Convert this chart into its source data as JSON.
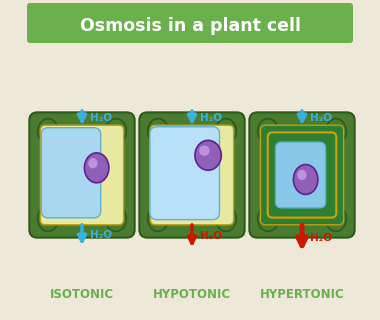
{
  "title": "Osmosis in a plant cell",
  "title_bg": "#6ab04c",
  "title_color": "#ffffff",
  "bg_color": "#ede8d8",
  "labels": [
    "ISOTONIC",
    "HYPOTONIC",
    "HYPERTONIC"
  ],
  "label_color": "#6ab04c",
  "cell_wall_outer": "#4a7c2f",
  "cell_wall_inner_light": "#d8eeaa",
  "cell_wall_stroke": "#2d5a1b",
  "cytoplasm_iso": "#e8e8a0",
  "cytoplasm_hyper": "#2e8030",
  "vacuole_iso": "#a8d8f0",
  "vacuole_hypo": "#b8e0f8",
  "vacuole_hyper": "#88c8e8",
  "vacuole_stroke": "#60b0d0",
  "nucleus_fill": "#9060b8",
  "nucleus_stroke": "#602090",
  "nucleus_hi": "#c090e0",
  "arrow_blue": "#38b0e0",
  "arrow_red": "#cc1800",
  "h2o_fontsize": 7.5,
  "label_fontsize": 8.5
}
